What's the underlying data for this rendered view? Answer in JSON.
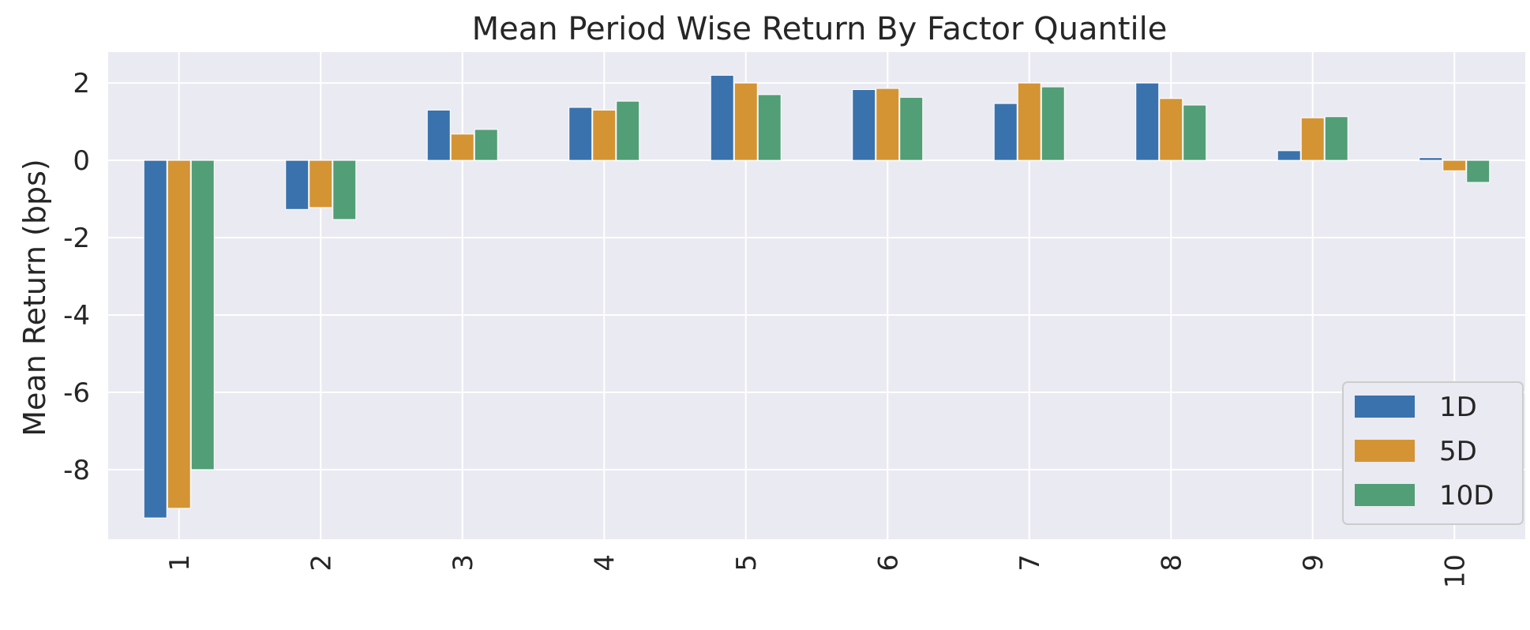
{
  "chart_data": {
    "type": "bar",
    "title": "Mean Period Wise Return By Factor Quantile",
    "xlabel": "",
    "ylabel": "Mean Return (bps)",
    "categories": [
      "1",
      "2",
      "3",
      "4",
      "5",
      "6",
      "7",
      "8",
      "9",
      "10"
    ],
    "yticks": [
      "-8",
      "-6",
      "-4",
      "-2",
      "0",
      "2"
    ],
    "ytick_values": [
      -8,
      -6,
      -4,
      -2,
      0,
      2
    ],
    "ylim": [
      -9.8,
      2.8
    ],
    "grid": true,
    "legend_position": "lower-right",
    "series": [
      {
        "name": "1D",
        "color": "#3a72ad",
        "values": [
          -9.25,
          -1.27,
          1.3,
          1.37,
          2.2,
          1.83,
          1.47,
          2.0,
          0.25,
          0.07
        ]
      },
      {
        "name": "5D",
        "color": "#d49434",
        "values": [
          -9.0,
          -1.22,
          0.68,
          1.3,
          2.0,
          1.86,
          2.0,
          1.6,
          1.1,
          -0.27
        ]
      },
      {
        "name": "10D",
        "color": "#529e77",
        "values": [
          -8.0,
          -1.53,
          0.8,
          1.53,
          1.7,
          1.63,
          1.9,
          1.43,
          1.13,
          -0.57
        ]
      }
    ],
    "colors": {
      "background": "#eaeaf2",
      "grid": "#ffffff"
    }
  }
}
